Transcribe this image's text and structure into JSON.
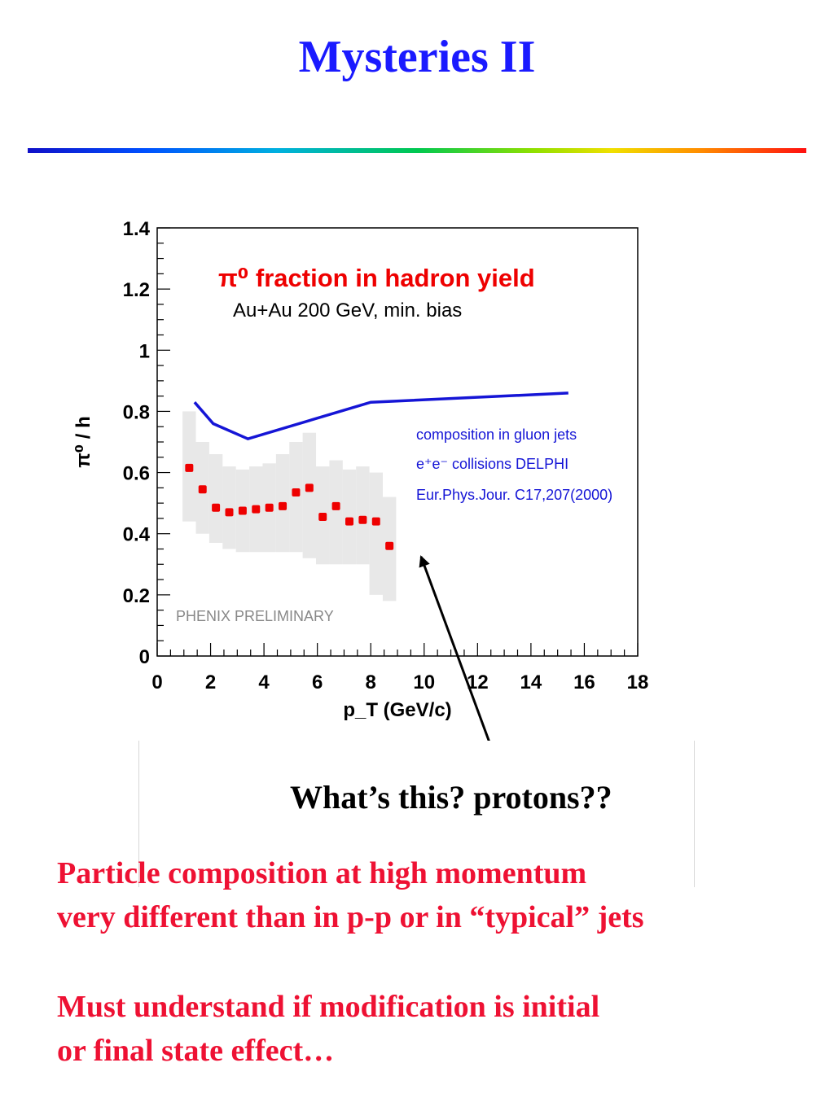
{
  "slide": {
    "title": "Mysteries II",
    "callout": "What’s this? protons??",
    "paragraphs": [
      [
        "Particle composition at high momentum",
        "very different than in p-p or in “typical” jets"
      ],
      [
        "Must understand if modification is initial",
        "or final state effect…"
      ]
    ],
    "colors": {
      "title": "#1a1aff",
      "body": "#ee1133",
      "phenix_points": "#ee0000",
      "phenix_band": "#e8e8e8",
      "gluon_line": "#1515d6",
      "gluon_legend": "#1515d6",
      "plot_title": "#ee0000"
    }
  },
  "chart_data": {
    "type": "scatter",
    "title": "π⁰ fraction in hadron yield",
    "subtitle": "Au+Au  200 GeV, min. bias",
    "xlabel": "p_T (GeV/c)",
    "ylabel": "π⁰ / h",
    "xlim": [
      0,
      18
    ],
    "ylim": [
      0,
      1.4
    ],
    "x_ticks": [
      "0",
      "2",
      "4",
      "6",
      "8",
      "10",
      "12",
      "14",
      "16",
      "18"
    ],
    "y_ticks": [
      "0",
      "0.2",
      "0.4",
      "0.6",
      "0.8",
      "1",
      "1.2",
      "1.4"
    ],
    "watermark": "PHENIX PRELIMINARY",
    "legend_lines": [
      "composition in gluon jets",
      "e⁺e⁻ collisions DELPHI",
      "Eur.Phys.Jour. C17,207(2000)"
    ],
    "series": [
      {
        "type": "scatter",
        "x": [
          1.2,
          1.7,
          2.2,
          2.7,
          3.2,
          3.7,
          4.2,
          4.7,
          5.2,
          5.7,
          6.2,
          6.7,
          7.2,
          7.7,
          8.2,
          8.7
        ],
        "y": [
          0.615,
          0.545,
          0.485,
          0.47,
          0.475,
          0.48,
          0.485,
          0.49,
          0.535,
          0.55,
          0.455,
          0.49,
          0.44,
          0.445,
          0.44,
          0.36
        ],
        "band_low": [
          0.44,
          0.4,
          0.37,
          0.35,
          0.34,
          0.34,
          0.34,
          0.34,
          0.34,
          0.32,
          0.3,
          0.3,
          0.3,
          0.3,
          0.2,
          0.18
        ],
        "band_high": [
          0.8,
          0.7,
          0.66,
          0.62,
          0.61,
          0.62,
          0.63,
          0.66,
          0.7,
          0.73,
          0.62,
          0.64,
          0.61,
          0.62,
          0.6,
          0.52
        ]
      },
      {
        "type": "line",
        "x": [
          1.4,
          2.1,
          3.4,
          8.0,
          15.4
        ],
        "y": [
          0.83,
          0.76,
          0.71,
          0.83,
          0.86
        ]
      }
    ]
  }
}
